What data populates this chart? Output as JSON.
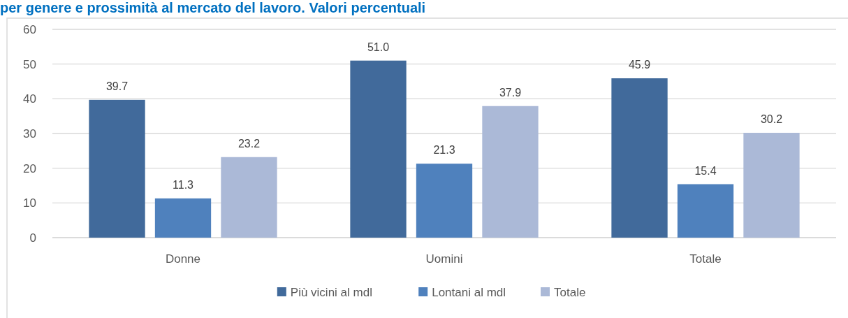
{
  "chart_data": {
    "type": "bar",
    "title": "per genere e prossimità al mercato del lavoro. Valori percentuali",
    "categories": [
      "Donne",
      "Uomini",
      "Totale"
    ],
    "series": [
      {
        "name": "Più vicini al mdl",
        "color": "#416a9b",
        "values": [
          39.7,
          51.0,
          45.9
        ],
        "value_labels": [
          "39.7",
          "51.0",
          "45.9"
        ]
      },
      {
        "name": "Lontani al mdl",
        "color": "#4f81bd",
        "values": [
          11.3,
          21.3,
          15.4
        ],
        "value_labels": [
          "11.3",
          "21.3",
          "15.4"
        ]
      },
      {
        "name": "Totale",
        "color": "#abb9d7",
        "values": [
          23.2,
          37.9,
          30.2
        ],
        "value_labels": [
          "23.2",
          "37.9",
          "30.2"
        ]
      }
    ],
    "ylim": [
      0,
      60
    ],
    "yticks": [
      0,
      10,
      20,
      30,
      40,
      50,
      60
    ],
    "grid": "y",
    "legend": "bottom"
  }
}
